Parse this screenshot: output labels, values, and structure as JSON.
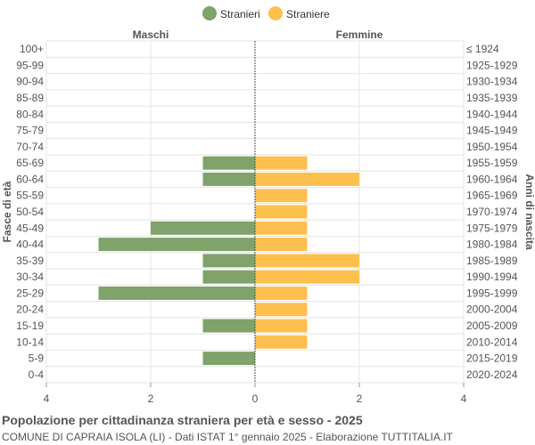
{
  "chart_data": {
    "type": "bar",
    "orientation": "horizontal-population-pyramid",
    "legend": {
      "position": "top-center",
      "items": [
        {
          "label": "Stranieri",
          "color": "#7fa36b"
        },
        {
          "label": "Straniere",
          "color": "#fdc04e"
        }
      ]
    },
    "left_header": "Maschi",
    "right_header": "Femmine",
    "ylabel_left": "Fasce di età",
    "ylabel_right": "Anni di nascita",
    "x_ticks": [
      4,
      2,
      0,
      2,
      4
    ],
    "xlim": [
      -4,
      4
    ],
    "grid": true,
    "categories": [
      "100+",
      "95-99",
      "90-94",
      "85-89",
      "80-84",
      "75-79",
      "70-74",
      "65-69",
      "60-64",
      "55-59",
      "50-54",
      "45-49",
      "40-44",
      "35-39",
      "30-34",
      "25-29",
      "20-24",
      "15-19",
      "10-14",
      "5-9",
      "0-4"
    ],
    "birth_years": [
      "≤ 1924",
      "1925-1929",
      "1930-1934",
      "1935-1939",
      "1940-1944",
      "1945-1949",
      "1950-1954",
      "1955-1959",
      "1960-1964",
      "1965-1969",
      "1970-1974",
      "1975-1979",
      "1980-1984",
      "1985-1989",
      "1990-1994",
      "1995-1999",
      "2000-2004",
      "2005-2009",
      "2010-2014",
      "2015-2019",
      "2020-2024"
    ],
    "series": [
      {
        "name": "Stranieri",
        "side": "left",
        "color": "#7fa36b",
        "values": [
          0,
          0,
          0,
          0,
          0,
          0,
          0,
          1,
          1,
          0,
          0,
          2,
          3,
          1,
          1,
          3,
          0,
          1,
          0,
          1,
          0
        ]
      },
      {
        "name": "Straniere",
        "side": "right",
        "color": "#fdc04e",
        "values": [
          0,
          0,
          0,
          0,
          0,
          0,
          0,
          1,
          2,
          1,
          1,
          1,
          1,
          2,
          2,
          1,
          1,
          1,
          1,
          0,
          0
        ]
      }
    ]
  },
  "caption": {
    "title": "Popolazione per cittadinanza straniera per età e sesso - 2025",
    "subtitle": "COMUNE DI CAPRAIA ISOLA (LI) - Dati ISTAT 1° gennaio 2025 - Elaborazione TUTTITALIA.IT"
  }
}
